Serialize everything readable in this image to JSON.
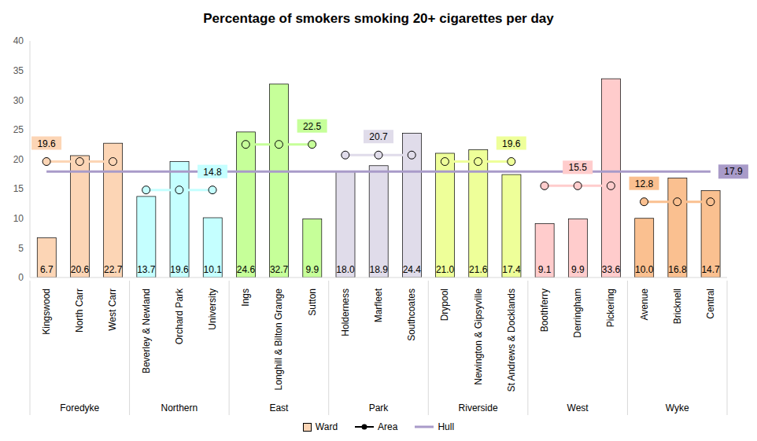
{
  "chart_data": {
    "type": "bar",
    "title": "Percentage of smokers smoking 20+ cigarettes per day",
    "categories": [
      "Kingswood",
      "North Carr",
      "West Carr",
      "Beverley & Newland",
      "Orchard Park",
      "University",
      "Ings",
      "Longhill & Bilton Grange",
      "Sutton",
      "Holderness",
      "Marfleet",
      "Southcoates",
      "Drypool",
      "Newington & Gipsyville",
      "St Andrews & Docklands",
      "Boothferry",
      "Derringham",
      "Pickering",
      "Avenue",
      "Bricknell",
      "Central"
    ],
    "areas": [
      "Foredyke",
      "Foredyke",
      "Foredyke",
      "Northern",
      "Northern",
      "Northern",
      "East",
      "East",
      "East",
      "Park",
      "Park",
      "Park",
      "Riverside",
      "Riverside",
      "Riverside",
      "West",
      "West",
      "West",
      "Wyke",
      "Wyke",
      "Wyke"
    ],
    "series": [
      {
        "name": "Ward",
        "type": "bar",
        "values": [
          6.7,
          20.6,
          22.7,
          13.7,
          19.6,
          10.1,
          24.6,
          32.7,
          9.9,
          18.0,
          18.9,
          24.4,
          21.0,
          21.6,
          17.4,
          9.1,
          9.9,
          33.6,
          10.0,
          16.8,
          14.7
        ],
        "value_labels": [
          "6.7",
          "20.6",
          "22.7",
          "13.7",
          "19.6",
          "10.1",
          "24.6",
          "32.7",
          "9.9",
          "18.0",
          "18.9",
          "24.4",
          "21.0",
          "21.6",
          "17.4",
          "9.1",
          "9.9",
          "33.6",
          "10.0",
          "16.8",
          "14.7"
        ],
        "colors": [
          "#fcd5b5",
          "#fcd5b5",
          "#fcd5b5",
          "#c5ffff",
          "#c5ffff",
          "#c5ffff",
          "#c6ff99",
          "#c6ff99",
          "#c6ff99",
          "#e0dcea",
          "#e0dcea",
          "#e0dcea",
          "#eeff99",
          "#eeff99",
          "#eeff99",
          "#ffcccc",
          "#ffcccc",
          "#ffcccc",
          "#fac090",
          "#fac090",
          "#fac090"
        ]
      },
      {
        "name": "Area",
        "type": "line",
        "color": "#000000",
        "marker": "circle",
        "values": [
          19.6,
          19.6,
          19.6,
          14.8,
          14.8,
          14.8,
          22.5,
          22.5,
          22.5,
          20.7,
          20.7,
          20.7,
          19.6,
          19.6,
          19.6,
          15.5,
          15.5,
          15.5,
          12.8,
          12.8,
          12.8
        ],
        "value_labels": [
          "19.6",
          null,
          null,
          null,
          null,
          "14.8",
          null,
          null,
          "22.5",
          null,
          "20.7",
          null,
          null,
          null,
          "19.6",
          null,
          "15.5",
          null,
          "12.8",
          null,
          null
        ],
        "colors": [
          "#fcd5b5",
          "#fcd5b5",
          "#fcd5b5",
          "#c5ffff",
          "#c5ffff",
          "#c5ffff",
          "#c6ff99",
          "#c6ff99",
          "#c6ff99",
          "#e0dcea",
          "#e0dcea",
          "#e0dcea",
          "#eeff99",
          "#eeff99",
          "#eeff99",
          "#ffcccc",
          "#ffcccc",
          "#ffcccc",
          "#fac090",
          "#fac090",
          "#fac090"
        ]
      },
      {
        "name": "Hull",
        "type": "line",
        "color": "#a99bc9",
        "values": [
          17.9,
          17.9,
          17.9,
          17.9,
          17.9,
          17.9,
          17.9,
          17.9,
          17.9,
          17.9,
          17.9,
          17.9,
          17.9,
          17.9,
          17.9,
          17.9,
          17.9,
          17.9,
          17.9,
          17.9,
          17.9
        ],
        "value_labels": [
          null,
          null,
          null,
          null,
          null,
          null,
          null,
          null,
          null,
          null,
          null,
          null,
          null,
          null,
          null,
          null,
          null,
          null,
          null,
          null,
          "17.9"
        ]
      }
    ],
    "ylim": [
      0,
      40
    ],
    "yticks": [
      0,
      5,
      10,
      15,
      20,
      25,
      30,
      35,
      40
    ],
    "grid": false,
    "data_labels": true,
    "legend": "bottom"
  }
}
